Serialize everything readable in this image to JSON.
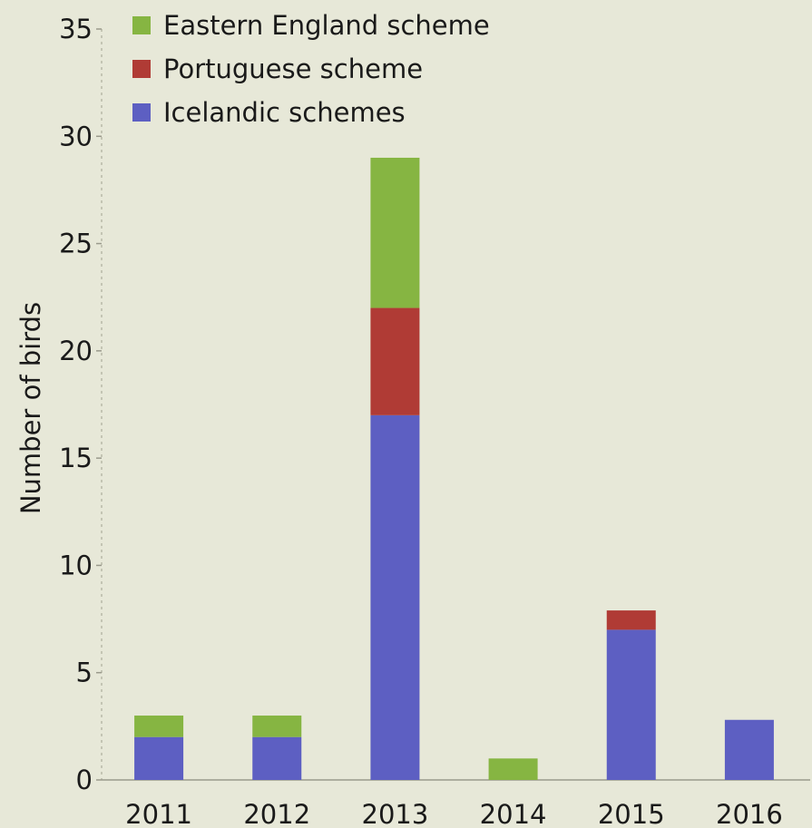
{
  "chart_data": {
    "type": "bar",
    "stacked": true,
    "categories": [
      "2011",
      "2012",
      "2013",
      "2014",
      "2015",
      "2016"
    ],
    "series": [
      {
        "name": "Icelandic schemes",
        "color": "#5d5fc2",
        "values": [
          2,
          2,
          17,
          0,
          7,
          2.8
        ]
      },
      {
        "name": "Portuguese scheme",
        "color": "#b03b35",
        "values": [
          0,
          0,
          5,
          0,
          0.9,
          0
        ]
      },
      {
        "name": "Eastern England scheme",
        "color": "#86b542",
        "values": [
          1,
          1,
          7,
          1,
          0,
          0
        ]
      }
    ],
    "legend_order": [
      "Eastern England scheme",
      "Portuguese scheme",
      "Icelandic schemes"
    ],
    "legend_position": "top-left",
    "title": "",
    "xlabel": "",
    "ylabel": "Number of birds",
    "ylim": [
      0,
      35
    ],
    "yticks": [
      0,
      5,
      10,
      15,
      20,
      25,
      30,
      35
    ],
    "grid": false
  }
}
